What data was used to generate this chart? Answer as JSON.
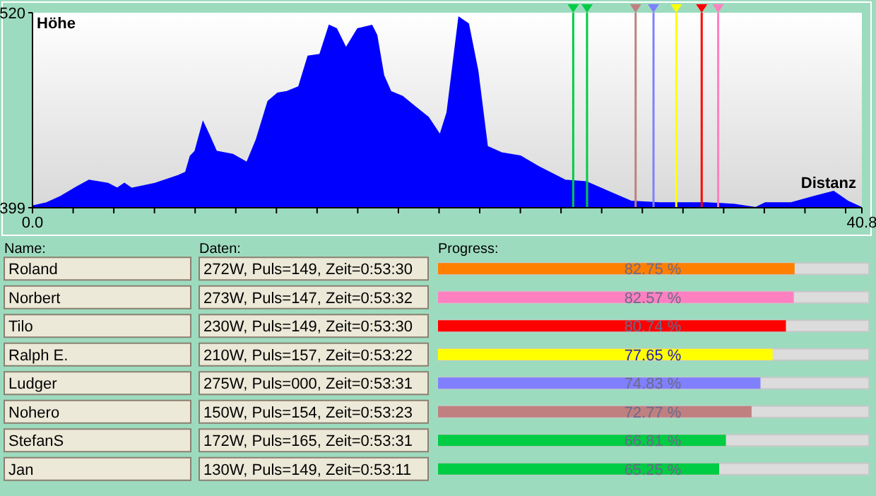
{
  "chart_data": [
    {
      "type": "area",
      "ylabel": "Höhe",
      "xlabel": "Distanz",
      "xlim": [
        0,
        40.8
      ],
      "ylim": [
        399,
        520
      ],
      "yticks": [
        399,
        520
      ],
      "xticks": [
        {
          "value": 0,
          "label": "0.0"
        },
        {
          "value": 2,
          "label": null
        },
        {
          "value": 4,
          "label": null
        },
        {
          "value": 6,
          "label": null
        },
        {
          "value": 8,
          "label": null
        },
        {
          "value": 10,
          "label": null
        },
        {
          "value": 12,
          "label": null
        },
        {
          "value": 14,
          "label": null
        },
        {
          "value": 16,
          "label": null
        },
        {
          "value": 18,
          "label": null
        },
        {
          "value": 20,
          "label": null
        },
        {
          "value": 22,
          "label": null
        },
        {
          "value": 24,
          "label": null
        },
        {
          "value": 26,
          "label": null
        },
        {
          "value": 28,
          "label": null
        },
        {
          "value": 30,
          "label": null
        },
        {
          "value": 32,
          "label": null
        },
        {
          "value": 34,
          "label": null
        },
        {
          "value": 36,
          "label": null
        },
        {
          "value": 38,
          "label": null
        },
        {
          "value": 40,
          "label": null
        },
        {
          "value": 40.8,
          "label": "40.8"
        }
      ],
      "series": [
        {
          "color": "#0000ff",
          "x": [
            0,
            0.7,
            1.39,
            2.2,
            2.78,
            3.71,
            4.17,
            4.52,
            4.87,
            6.03,
            7.19,
            7.54,
            7.77,
            8.0,
            8.39,
            8.69,
            9.04,
            9.85,
            10.55,
            11.01,
            11.59,
            12.06,
            12.52,
            13.1,
            13.56,
            14.14,
            14.6,
            14.95,
            15.42,
            16.0,
            16.69,
            16.93,
            17.27,
            17.62,
            18.2,
            18.78,
            19.47,
            20.05,
            20.4,
            20.98,
            21.44,
            21.9,
            22.37,
            23.07,
            24.0,
            24.81,
            26.2,
            27.24,
            28.51,
            29.44,
            30.84,
            33.15,
            34.54,
            35.58,
            36.05,
            37.32,
            38.48,
            39.41,
            40.1,
            40.8
          ],
          "values": [
            400,
            402,
            406,
            412,
            416,
            414,
            411,
            414,
            411,
            414,
            419,
            421,
            431,
            434,
            452,
            444,
            434,
            432,
            427,
            441,
            465,
            470,
            471,
            474,
            493,
            494,
            512,
            510,
            498,
            510,
            512,
            506,
            481,
            471,
            468,
            462,
            455,
            444,
            458,
            517,
            513,
            484,
            437,
            433,
            431,
            425,
            416,
            415,
            408,
            403,
            402,
            402,
            401,
            399,
            402,
            402,
            406,
            409,
            403,
            399
          ]
        }
      ],
      "ref_lines": [
        {
          "axis": "x",
          "value": 26.6,
          "color": "#00cc44"
        },
        {
          "axis": "x",
          "value": 27.28,
          "color": "#00cc44"
        },
        {
          "axis": "x",
          "value": 29.67,
          "color": "#c08080"
        },
        {
          "axis": "x",
          "value": 30.55,
          "color": "#8080ff"
        },
        {
          "axis": "x",
          "value": 31.67,
          "color": "#ffff00"
        },
        {
          "axis": "x",
          "value": 32.92,
          "color": "#ff0000"
        },
        {
          "axis": "x",
          "value": 33.73,
          "color": "#ff80c0"
        }
      ]
    },
    {
      "type": "bar",
      "orientation": "horizontal",
      "ylabel": "Name:",
      "title": "Progress:",
      "xlim": [
        0,
        100
      ],
      "tick_labels": "y",
      "categories": [
        "Roland",
        "Norbert",
        "Tilo",
        "Ralph E.",
        "Ludger",
        "Nohero",
        "StefanS",
        "Jan"
      ],
      "values": [
        82.75,
        82.57,
        80.74,
        77.65,
        74.83,
        72.77,
        66.81,
        65.25
      ],
      "value_labels": [
        "82.75 %",
        "82.57 %",
        "80.74 %",
        "77.65 %",
        "74.83 %",
        "72.77 %",
        "66.81 %",
        "65.25 %"
      ],
      "colors": [
        "#ff8000",
        "#ff80c0",
        "#ff0000",
        "#ffff00",
        "#8080ff",
        "#c08080",
        "#00cc44",
        "#00cc44"
      ],
      "annotations": [
        "Daten:",
        "272W, Puls=149, Zeit=0:53:30",
        "273W, Puls=147, Zeit=0:53:32",
        "230W, Puls=149, Zeit=0:53:30",
        "210W, Puls=157, Zeit=0:53:22",
        "275W, Puls=000, Zeit=0:53:31",
        "150W, Puls=154, Zeit=0:53:23",
        "172W, Puls=165, Zeit=0:53:31",
        "130W, Puls=149, Zeit=0:53:11"
      ]
    }
  ]
}
